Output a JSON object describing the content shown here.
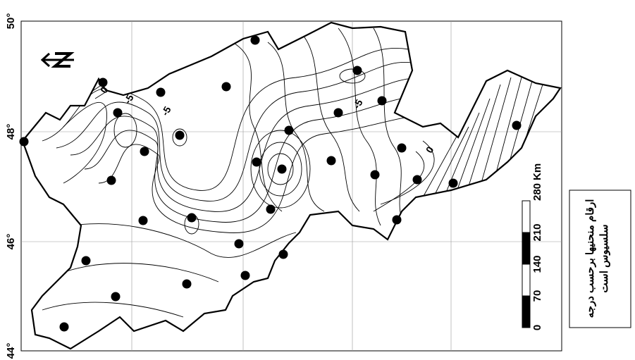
{
  "axis_labels": [
    "50°",
    "48°",
    "46°",
    "44°"
  ],
  "contour_labels": [
    "0",
    "-5",
    "-5",
    "-5",
    "0"
  ],
  "scale": {
    "ticks": [
      "0",
      "70",
      "140",
      "210",
      "280"
    ],
    "unit": "Km"
  },
  "legend": {
    "lines": [
      "ارقام منحنیها برحسب درجه",
      "سلسیوس است"
    ]
  }
}
